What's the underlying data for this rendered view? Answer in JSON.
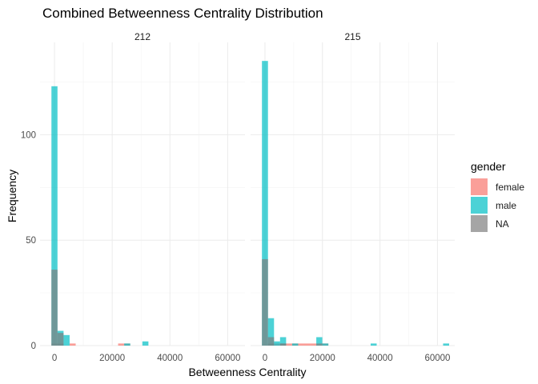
{
  "chart_data": {
    "type": "bar",
    "title": "Combined Betweenness Centrality Distribution",
    "xlabel": "Betweenness Centrality",
    "ylabel": "Frequency",
    "xlim": [
      -5000,
      66000
    ],
    "ylim": [
      0,
      140
    ],
    "x_ticks": [
      0,
      20000,
      40000,
      60000
    ],
    "x_tick_labels": [
      "0",
      "20000",
      "40000",
      "60000"
    ],
    "y_ticks": [
      0,
      50,
      100
    ],
    "y_tick_labels": [
      "0",
      "50",
      "100"
    ],
    "grid": true,
    "bin_width": 2100,
    "legend": {
      "title": "gender",
      "position": "right",
      "entries": [
        {
          "label": "female",
          "color": "#F8766D"
        },
        {
          "label": "male",
          "color": "#00BFC4"
        },
        {
          "label": "NA",
          "color": "#7F7F7F"
        }
      ]
    },
    "panels": [
      {
        "label": "212",
        "series": [
          {
            "name": "female",
            "bins": [
              [
                0,
                1
              ],
              [
                2100,
                1
              ],
              [
                6300,
                1
              ],
              [
                23100,
                1
              ],
              [
                25200,
                1
              ]
            ]
          },
          {
            "name": "male",
            "bins": [
              [
                0,
                123
              ],
              [
                2100,
                7
              ],
              [
                4200,
                5
              ],
              [
                25200,
                1
              ],
              [
                31500,
                2
              ]
            ]
          },
          {
            "name": "NA",
            "bins": [
              [
                0,
                36
              ],
              [
                2100,
                6
              ]
            ]
          }
        ]
      },
      {
        "label": "215",
        "series": [
          {
            "name": "female",
            "bins": [
              [
                2100,
                1
              ],
              [
                4200,
                1
              ],
              [
                6300,
                1
              ],
              [
                8400,
                1
              ],
              [
                10500,
                1
              ],
              [
                12600,
                1
              ],
              [
                14700,
                1
              ],
              [
                16800,
                1
              ],
              [
                21000,
                1
              ]
            ]
          },
          {
            "name": "male",
            "bins": [
              [
                0,
                135
              ],
              [
                2100,
                13
              ],
              [
                4200,
                2
              ],
              [
                6300,
                4
              ],
              [
                10500,
                1
              ],
              [
                18900,
                4
              ],
              [
                21000,
                1
              ],
              [
                37800,
                1
              ],
              [
                63000,
                1
              ]
            ]
          },
          {
            "name": "NA",
            "bins": [
              [
                0,
                41
              ],
              [
                2100,
                4
              ],
              [
                6300,
                1
              ],
              [
                18900,
                1
              ]
            ]
          }
        ]
      }
    ]
  }
}
